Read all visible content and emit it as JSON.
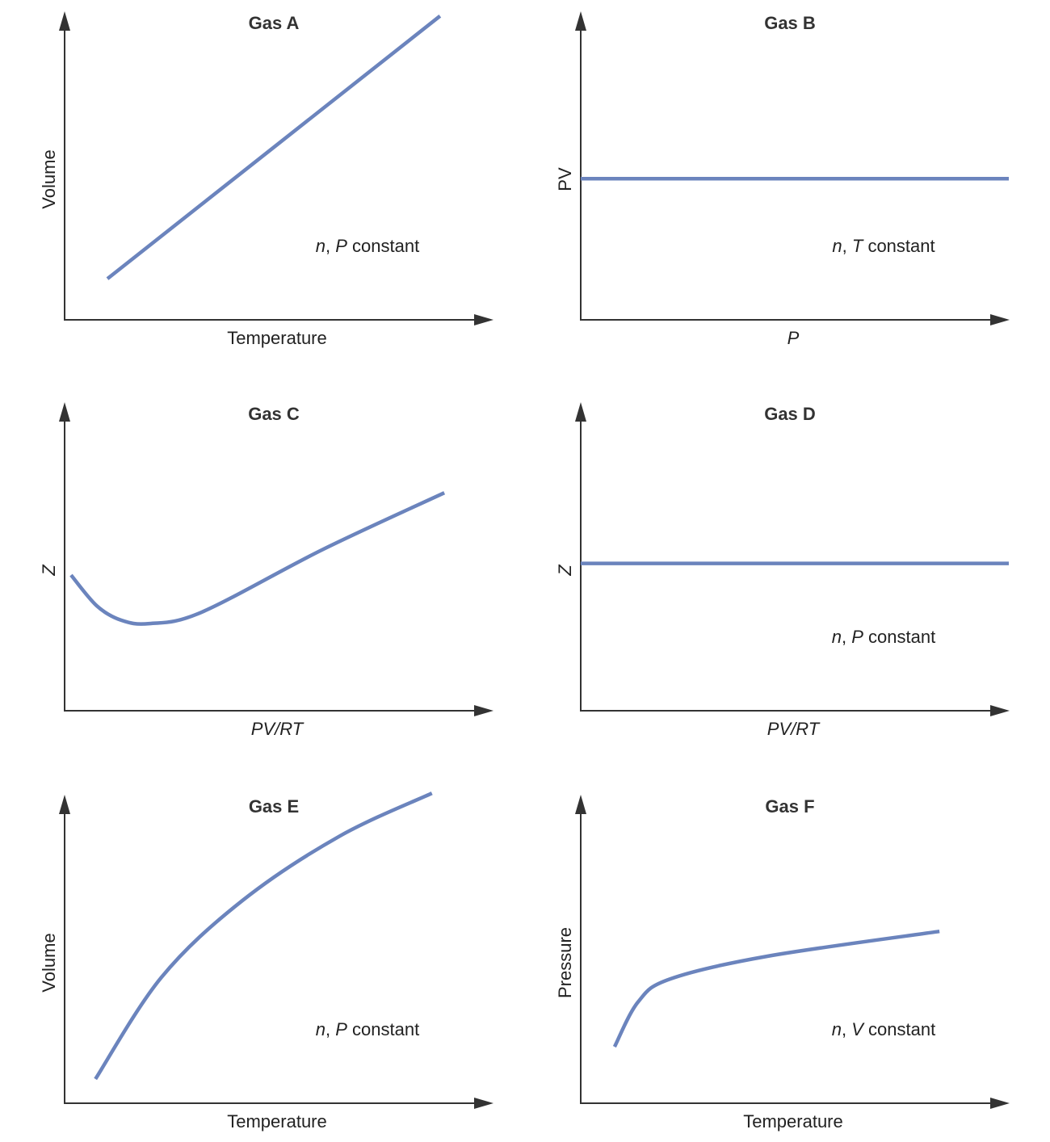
{
  "chart_data": [
    {
      "type": "line",
      "title": "Gas A",
      "xlabel": "Temperature",
      "xlabel_italic": false,
      "ylabel": "Volume",
      "ylabel_italic": false,
      "annotation": {
        "var1": "n",
        "sep": ", ",
        "var2": "P",
        "suffix": " constant"
      },
      "xlim": [
        0,
        10
      ],
      "ylim": [
        0,
        10
      ],
      "grid": false,
      "color": "#6b84bd",
      "x": [
        1.0,
        8.77
      ],
      "y": [
        1.34,
        9.9
      ]
    },
    {
      "type": "line",
      "title": "Gas B",
      "xlabel": "P",
      "xlabel_italic": true,
      "ylabel": "PV",
      "ylabel_italic": false,
      "annotation": {
        "var1": "n",
        "sep": ", ",
        "var2": "T",
        "suffix": " constant"
      },
      "xlim": [
        0,
        10
      ],
      "ylim": [
        0,
        10
      ],
      "grid": false,
      "color": "#6b84bd",
      "x": [
        0,
        10
      ],
      "y": [
        4.6,
        4.6
      ]
    },
    {
      "type": "line",
      "title": "Gas C",
      "xlabel": "PV/RT",
      "xlabel_italic": true,
      "ylabel": "Z",
      "ylabel_italic": true,
      "annotation": null,
      "xlim": [
        0,
        10
      ],
      "ylim": [
        0,
        10
      ],
      "grid": false,
      "color": "#6b84bd",
      "x": [
        0.15,
        0.75,
        1.32,
        1.98,
        3.2,
        6.04,
        8.87
      ],
      "y": [
        4.42,
        3.42,
        2.95,
        2.84,
        3.21,
        5.26,
        7.1
      ]
    },
    {
      "type": "line",
      "title": "Gas D",
      "xlabel": "PV/RT",
      "xlabel_italic": true,
      "ylabel": "Z",
      "ylabel_italic": true,
      "annotation": {
        "var1": "n",
        "sep": ", ",
        "var2": "P",
        "suffix": " constant"
      },
      "xlim": [
        0,
        10
      ],
      "ylim": [
        0,
        10
      ],
      "grid": false,
      "color": "#6b84bd",
      "x": [
        0,
        10
      ],
      "y": [
        4.8,
        4.8
      ]
    },
    {
      "type": "line",
      "title": "Gas E",
      "xlabel": "Temperature",
      "xlabel_italic": false,
      "ylabel": "Volume",
      "ylabel_italic": false,
      "annotation": {
        "var1": "n",
        "sep": ", ",
        "var2": "P",
        "suffix": " constant"
      },
      "xlim": [
        0,
        10
      ],
      "ylim": [
        0,
        10
      ],
      "grid": false,
      "color": "#6b84bd",
      "x": [
        0.72,
        2.26,
        4.15,
        6.42,
        8.58
      ],
      "y": [
        0.79,
        4.1,
        6.6,
        8.7,
        10.1
      ]
    },
    {
      "type": "line",
      "title": "Gas F",
      "xlabel": "Temperature",
      "xlabel_italic": false,
      "ylabel": "Pressure",
      "ylabel_italic": false,
      "annotation": {
        "var1": "n",
        "sep": ", ",
        "var2": "V",
        "suffix": " constant"
      },
      "xlim": [
        0,
        10
      ],
      "ylim": [
        0,
        10
      ],
      "grid": false,
      "color": "#6b84bd",
      "x": [
        0.79,
        1.34,
        2.09,
        4.36,
        8.38
      ],
      "y": [
        1.84,
        3.3,
        4.05,
        4.79,
        5.6
      ]
    }
  ]
}
